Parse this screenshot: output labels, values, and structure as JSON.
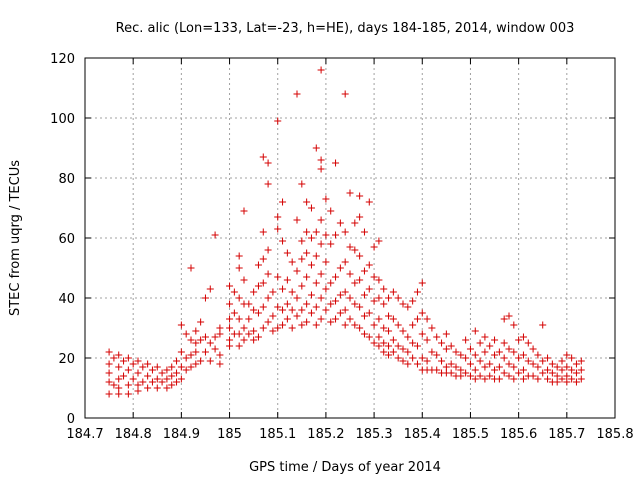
{
  "chart_data": {
    "type": "scatter",
    "title": "Rec. alic (Lon=133, Lat=-23, h=HE), days 184-185, 2014, window 003",
    "xlabel": "GPS time / Days of year 2014",
    "ylabel": "STEC from uqrg / TECUs",
    "xlim": [
      184.7,
      185.8
    ],
    "ylim": [
      0,
      120
    ],
    "xticks": [
      "184.7",
      "184.8",
      "184.9",
      "185",
      "185.1",
      "185.2",
      "185.3",
      "185.4",
      "185.5",
      "185.6",
      "185.7",
      "185.8"
    ],
    "yticks": [
      "0",
      "20",
      "40",
      "60",
      "80",
      "100",
      "120"
    ],
    "grid": true,
    "marker": "+",
    "marker_color": "#d40000",
    "points": [
      [
        184.75,
        22
      ],
      [
        184.75,
        18
      ],
      [
        184.75,
        15
      ],
      [
        184.75,
        12
      ],
      [
        184.75,
        8
      ],
      [
        184.76,
        20
      ],
      [
        184.76,
        11
      ],
      [
        184.77,
        21
      ],
      [
        184.77,
        17
      ],
      [
        184.77,
        13
      ],
      [
        184.77,
        10
      ],
      [
        184.77,
        8
      ],
      [
        184.78,
        19
      ],
      [
        184.78,
        14
      ],
      [
        184.79,
        20
      ],
      [
        184.79,
        16
      ],
      [
        184.79,
        11
      ],
      [
        184.79,
        8
      ],
      [
        184.8,
        18
      ],
      [
        184.8,
        13
      ],
      [
        184.81,
        19
      ],
      [
        184.81,
        15
      ],
      [
        184.81,
        11
      ],
      [
        184.81,
        9
      ],
      [
        184.82,
        17
      ],
      [
        184.82,
        12
      ],
      [
        184.83,
        18
      ],
      [
        184.83,
        14
      ],
      [
        184.83,
        10
      ],
      [
        184.84,
        16
      ],
      [
        184.84,
        12
      ],
      [
        184.85,
        17
      ],
      [
        184.85,
        13
      ],
      [
        184.85,
        10
      ],
      [
        184.86,
        15
      ],
      [
        184.86,
        12
      ],
      [
        184.87,
        16
      ],
      [
        184.87,
        13
      ],
      [
        184.87,
        10
      ],
      [
        184.88,
        17
      ],
      [
        184.88,
        14
      ],
      [
        184.88,
        11
      ],
      [
        184.89,
        19
      ],
      [
        184.89,
        15
      ],
      [
        184.89,
        12
      ],
      [
        184.9,
        31
      ],
      [
        184.9,
        22
      ],
      [
        184.9,
        17
      ],
      [
        184.9,
        13
      ],
      [
        184.91,
        28
      ],
      [
        184.91,
        20
      ],
      [
        184.91,
        16
      ],
      [
        184.92,
        50
      ],
      [
        184.92,
        26
      ],
      [
        184.92,
        21
      ],
      [
        184.92,
        17
      ],
      [
        184.93,
        29
      ],
      [
        184.93,
        25
      ],
      [
        184.93,
        22
      ],
      [
        184.93,
        18
      ],
      [
        184.94,
        32
      ],
      [
        184.94,
        26
      ],
      [
        184.94,
        19
      ],
      [
        184.95,
        40
      ],
      [
        184.95,
        27
      ],
      [
        184.95,
        22
      ],
      [
        184.96,
        43
      ],
      [
        184.96,
        25
      ],
      [
        184.96,
        19
      ],
      [
        184.97,
        61
      ],
      [
        184.97,
        27
      ],
      [
        184.97,
        23
      ],
      [
        184.98,
        30
      ],
      [
        184.98,
        28
      ],
      [
        184.98,
        21
      ],
      [
        184.98,
        18
      ],
      [
        185.0,
        44
      ],
      [
        185.0,
        38
      ],
      [
        185.0,
        33
      ],
      [
        185.0,
        30
      ],
      [
        185.0,
        26
      ],
      [
        185.0,
        24
      ],
      [
        185.01,
        42
      ],
      [
        185.01,
        35
      ],
      [
        185.01,
        28
      ],
      [
        185.02,
        54
      ],
      [
        185.02,
        50
      ],
      [
        185.02,
        40
      ],
      [
        185.02,
        33
      ],
      [
        185.02,
        28
      ],
      [
        185.02,
        24
      ],
      [
        185.03,
        69
      ],
      [
        185.03,
        46
      ],
      [
        185.03,
        38
      ],
      [
        185.03,
        30
      ],
      [
        185.03,
        26
      ],
      [
        185.04,
        38
      ],
      [
        185.04,
        33
      ],
      [
        185.04,
        28
      ],
      [
        185.05,
        42
      ],
      [
        185.05,
        36
      ],
      [
        185.05,
        29
      ],
      [
        185.05,
        26
      ],
      [
        185.06,
        51
      ],
      [
        185.06,
        44
      ],
      [
        185.06,
        35
      ],
      [
        185.06,
        27
      ],
      [
        185.07,
        87
      ],
      [
        185.07,
        62
      ],
      [
        185.07,
        53
      ],
      [
        185.07,
        45
      ],
      [
        185.07,
        37
      ],
      [
        185.07,
        30
      ],
      [
        185.08,
        85
      ],
      [
        185.08,
        78
      ],
      [
        185.08,
        56
      ],
      [
        185.08,
        48
      ],
      [
        185.08,
        40
      ],
      [
        185.08,
        32
      ],
      [
        185.09,
        42
      ],
      [
        185.09,
        34
      ],
      [
        185.09,
        29
      ],
      [
        185.1,
        99
      ],
      [
        185.1,
        67
      ],
      [
        185.1,
        63
      ],
      [
        185.1,
        47
      ],
      [
        185.1,
        37
      ],
      [
        185.1,
        30
      ],
      [
        185.11,
        72
      ],
      [
        185.11,
        59
      ],
      [
        185.11,
        43
      ],
      [
        185.11,
        36
      ],
      [
        185.11,
        31
      ],
      [
        185.12,
        55
      ],
      [
        185.12,
        46
      ],
      [
        185.12,
        38
      ],
      [
        185.12,
        33
      ],
      [
        185.13,
        52
      ],
      [
        185.13,
        42
      ],
      [
        185.13,
        36
      ],
      [
        185.13,
        30
      ],
      [
        185.14,
        108
      ],
      [
        185.14,
        66
      ],
      [
        185.14,
        49
      ],
      [
        185.14,
        40
      ],
      [
        185.14,
        34
      ],
      [
        185.15,
        78
      ],
      [
        185.15,
        59
      ],
      [
        185.15,
        53
      ],
      [
        185.15,
        44
      ],
      [
        185.15,
        36
      ],
      [
        185.15,
        31
      ],
      [
        185.16,
        72
      ],
      [
        185.16,
        62
      ],
      [
        185.16,
        55
      ],
      [
        185.16,
        47
      ],
      [
        185.16,
        38
      ],
      [
        185.16,
        32
      ],
      [
        185.17,
        70
      ],
      [
        185.17,
        60
      ],
      [
        185.17,
        51
      ],
      [
        185.17,
        41
      ],
      [
        185.17,
        35
      ],
      [
        185.18,
        90
      ],
      [
        185.18,
        62
      ],
      [
        185.18,
        54
      ],
      [
        185.18,
        45
      ],
      [
        185.18,
        37
      ],
      [
        185.18,
        31
      ],
      [
        185.19,
        116
      ],
      [
        185.19,
        86
      ],
      [
        185.19,
        83
      ],
      [
        185.19,
        66
      ],
      [
        185.19,
        58
      ],
      [
        185.19,
        48
      ],
      [
        185.19,
        40
      ],
      [
        185.19,
        33
      ],
      [
        185.2,
        73
      ],
      [
        185.2,
        61
      ],
      [
        185.2,
        52
      ],
      [
        185.2,
        43
      ],
      [
        185.2,
        36
      ],
      [
        185.21,
        69
      ],
      [
        185.21,
        58
      ],
      [
        185.21,
        45
      ],
      [
        185.21,
        38
      ],
      [
        185.21,
        32
      ],
      [
        185.22,
        85
      ],
      [
        185.22,
        61
      ],
      [
        185.22,
        47
      ],
      [
        185.22,
        39
      ],
      [
        185.22,
        33
      ],
      [
        185.23,
        65
      ],
      [
        185.23,
        50
      ],
      [
        185.23,
        41
      ],
      [
        185.23,
        35
      ],
      [
        185.24,
        108
      ],
      [
        185.24,
        62
      ],
      [
        185.24,
        52
      ],
      [
        185.24,
        42
      ],
      [
        185.24,
        36
      ],
      [
        185.24,
        31
      ],
      [
        185.25,
        75
      ],
      [
        185.25,
        57
      ],
      [
        185.25,
        48
      ],
      [
        185.25,
        40
      ],
      [
        185.25,
        33
      ],
      [
        185.26,
        65
      ],
      [
        185.26,
        56
      ],
      [
        185.26,
        45
      ],
      [
        185.26,
        38
      ],
      [
        185.26,
        31
      ],
      [
        185.27,
        74
      ],
      [
        185.27,
        67
      ],
      [
        185.27,
        54
      ],
      [
        185.27,
        46
      ],
      [
        185.27,
        37
      ],
      [
        185.27,
        30
      ],
      [
        185.28,
        62
      ],
      [
        185.28,
        49
      ],
      [
        185.28,
        41
      ],
      [
        185.28,
        34
      ],
      [
        185.28,
        28
      ],
      [
        185.29,
        72
      ],
      [
        185.29,
        51
      ],
      [
        185.29,
        43
      ],
      [
        185.29,
        35
      ],
      [
        185.29,
        27
      ],
      [
        185.3,
        57
      ],
      [
        185.3,
        47
      ],
      [
        185.3,
        39
      ],
      [
        185.3,
        31
      ],
      [
        185.3,
        25
      ],
      [
        185.31,
        59
      ],
      [
        185.31,
        46
      ],
      [
        185.31,
        40
      ],
      [
        185.31,
        33
      ],
      [
        185.31,
        27
      ],
      [
        185.31,
        24
      ],
      [
        185.32,
        43
      ],
      [
        185.32,
        38
      ],
      [
        185.32,
        30
      ],
      [
        185.32,
        25
      ],
      [
        185.32,
        22
      ],
      [
        185.33,
        40
      ],
      [
        185.33,
        34
      ],
      [
        185.33,
        29
      ],
      [
        185.33,
        24
      ],
      [
        185.33,
        21
      ],
      [
        185.34,
        42
      ],
      [
        185.34,
        33
      ],
      [
        185.34,
        26
      ],
      [
        185.34,
        22
      ],
      [
        185.35,
        40
      ],
      [
        185.35,
        31
      ],
      [
        185.35,
        24
      ],
      [
        185.35,
        20
      ],
      [
        185.36,
        38
      ],
      [
        185.36,
        29
      ],
      [
        185.36,
        23
      ],
      [
        185.36,
        19
      ],
      [
        185.37,
        37
      ],
      [
        185.37,
        27
      ],
      [
        185.37,
        22
      ],
      [
        185.37,
        18
      ],
      [
        185.38,
        39
      ],
      [
        185.38,
        31
      ],
      [
        185.38,
        25
      ],
      [
        185.38,
        20
      ],
      [
        185.39,
        42
      ],
      [
        185.39,
        33
      ],
      [
        185.39,
        24
      ],
      [
        185.39,
        18
      ],
      [
        185.4,
        45
      ],
      [
        185.4,
        35
      ],
      [
        185.4,
        28
      ],
      [
        185.4,
        20
      ],
      [
        185.4,
        16
      ],
      [
        185.41,
        33
      ],
      [
        185.41,
        26
      ],
      [
        185.41,
        19
      ],
      [
        185.41,
        16
      ],
      [
        185.42,
        30
      ],
      [
        185.42,
        22
      ],
      [
        185.42,
        16
      ],
      [
        185.43,
        27
      ],
      [
        185.43,
        21
      ],
      [
        185.43,
        16
      ],
      [
        185.44,
        25
      ],
      [
        185.44,
        19
      ],
      [
        185.44,
        15
      ],
      [
        185.45,
        28
      ],
      [
        185.45,
        23
      ],
      [
        185.45,
        17
      ],
      [
        185.45,
        15
      ],
      [
        185.46,
        24
      ],
      [
        185.46,
        18
      ],
      [
        185.46,
        15
      ],
      [
        185.47,
        22
      ],
      [
        185.47,
        17
      ],
      [
        185.47,
        14
      ],
      [
        185.48,
        21
      ],
      [
        185.48,
        16
      ],
      [
        185.48,
        14
      ],
      [
        185.49,
        26
      ],
      [
        185.49,
        20
      ],
      [
        185.49,
        15
      ],
      [
        185.5,
        23
      ],
      [
        185.5,
        18
      ],
      [
        185.5,
        14
      ],
      [
        185.51,
        29
      ],
      [
        185.51,
        21
      ],
      [
        185.51,
        16
      ],
      [
        185.51,
        13
      ],
      [
        185.52,
        25
      ],
      [
        185.52,
        19
      ],
      [
        185.52,
        14
      ],
      [
        185.53,
        27
      ],
      [
        185.53,
        22
      ],
      [
        185.53,
        17
      ],
      [
        185.53,
        13
      ],
      [
        185.54,
        24
      ],
      [
        185.54,
        18
      ],
      [
        185.54,
        14
      ],
      [
        185.55,
        26
      ],
      [
        185.55,
        21
      ],
      [
        185.55,
        16
      ],
      [
        185.55,
        13
      ],
      [
        185.56,
        22
      ],
      [
        185.56,
        17
      ],
      [
        185.56,
        13
      ],
      [
        185.57,
        33
      ],
      [
        185.57,
        25
      ],
      [
        185.57,
        20
      ],
      [
        185.57,
        15
      ],
      [
        185.58,
        34
      ],
      [
        185.58,
        23
      ],
      [
        185.58,
        18
      ],
      [
        185.58,
        14
      ],
      [
        185.59,
        31
      ],
      [
        185.59,
        22
      ],
      [
        185.59,
        17
      ],
      [
        185.59,
        13
      ],
      [
        185.6,
        26
      ],
      [
        185.6,
        20
      ],
      [
        185.6,
        15
      ],
      [
        185.61,
        27
      ],
      [
        185.61,
        21
      ],
      [
        185.61,
        16
      ],
      [
        185.61,
        13
      ],
      [
        185.62,
        25
      ],
      [
        185.62,
        19
      ],
      [
        185.62,
        14
      ],
      [
        185.63,
        23
      ],
      [
        185.63,
        18
      ],
      [
        185.63,
        14
      ],
      [
        185.64,
        21
      ],
      [
        185.64,
        17
      ],
      [
        185.64,
        13
      ],
      [
        185.65,
        31
      ],
      [
        185.65,
        19
      ],
      [
        185.65,
        15
      ],
      [
        185.66,
        20
      ],
      [
        185.66,
        16
      ],
      [
        185.66,
        13
      ],
      [
        185.67,
        18
      ],
      [
        185.67,
        15
      ],
      [
        185.67,
        12
      ],
      [
        185.68,
        17
      ],
      [
        185.68,
        14
      ],
      [
        185.68,
        12
      ],
      [
        185.69,
        19
      ],
      [
        185.69,
        16
      ],
      [
        185.69,
        13
      ],
      [
        185.7,
        21
      ],
      [
        185.7,
        17
      ],
      [
        185.7,
        14
      ],
      [
        185.7,
        12
      ],
      [
        185.71,
        20
      ],
      [
        185.71,
        16
      ],
      [
        185.71,
        13
      ],
      [
        185.72,
        18
      ],
      [
        185.72,
        15
      ],
      [
        185.72,
        12
      ],
      [
        185.73,
        19
      ],
      [
        185.73,
        16
      ],
      [
        185.73,
        13
      ]
    ]
  }
}
